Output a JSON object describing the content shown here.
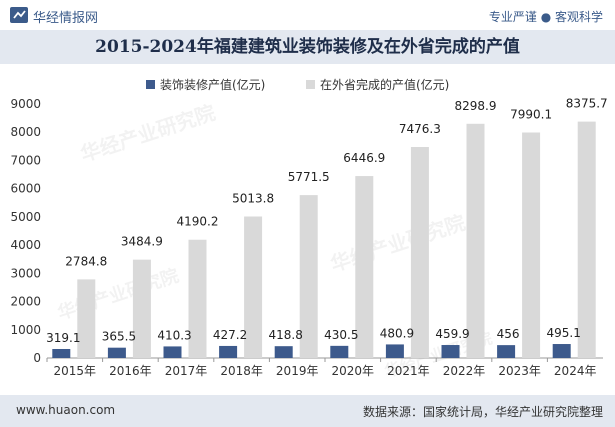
{
  "header": {
    "brand": "华经情报网",
    "tagline": "专业严谨 ● 客观科学"
  },
  "title": "2015-2024年福建建筑业装饰装修及在外省完成的产值",
  "watermark": "华经产业研究院",
  "footer": {
    "url": "www.huaon.com",
    "source": "数据来源：国家统计局，华经产业研究院整理"
  },
  "colors": {
    "series1": "#3d5a8c",
    "series2": "#d9d9d9",
    "title_bg": "#e3e8f0",
    "brand": "#3b5b8a"
  },
  "chart_data": {
    "type": "bar",
    "categories": [
      "2015年",
      "2016年",
      "2017年",
      "2018年",
      "2019年",
      "2020年",
      "2021年",
      "2022年",
      "2023年",
      "2024年"
    ],
    "series": [
      {
        "name": "装饰装修产值(亿元)",
        "values": [
          319.1,
          365.5,
          410.3,
          427.2,
          418.8,
          430.5,
          480.9,
          459.9,
          456,
          495.1
        ],
        "labels": [
          "319.1",
          "365.5",
          "410.3",
          "427.2",
          "418.8",
          "430.5",
          "480.9",
          "459.9",
          "456",
          "495.1"
        ]
      },
      {
        "name": "在外省完成的产值(亿元)",
        "values": [
          2784.8,
          3484.9,
          4190.2,
          5013.8,
          5771.5,
          6446.9,
          7476.3,
          8298.9,
          7990.1,
          8375.7
        ],
        "labels": [
          "2784.8",
          "3484.9",
          "4190.2",
          "5013.8",
          "5771.5",
          "6446.9",
          "7476.3",
          "8298.9",
          "7990.1",
          "8375.7"
        ]
      }
    ],
    "ylim": [
      0,
      9000
    ],
    "yticks": [
      0,
      1000,
      2000,
      3000,
      4000,
      5000,
      6000,
      7000,
      8000,
      9000
    ],
    "legend_position": "top-center",
    "grid": false
  }
}
